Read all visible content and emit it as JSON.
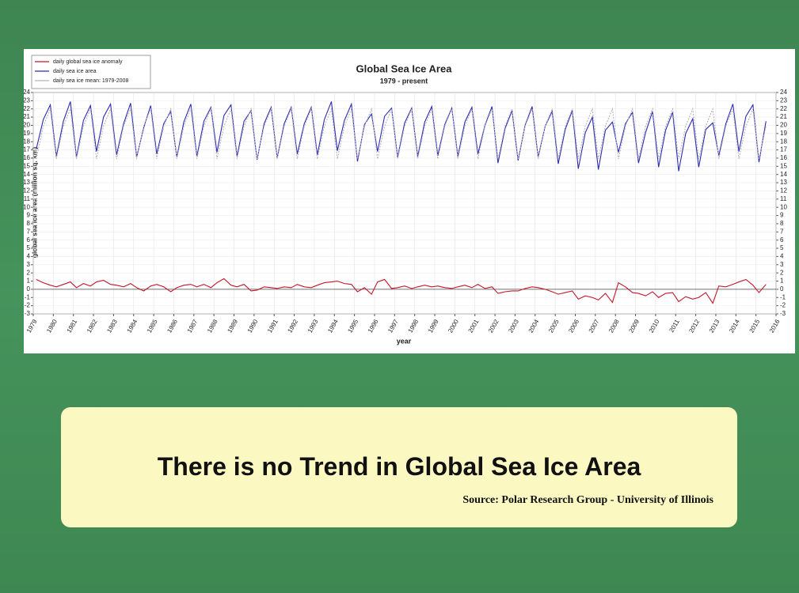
{
  "chart_data": {
    "type": "line",
    "title": "Global Sea Ice Area",
    "subtitle": "1979 - present",
    "xlabel": "year",
    "ylabel": "global sea ice area (million sq. km)",
    "xlim": [
      1979,
      2016
    ],
    "ylim": [
      -3,
      24
    ],
    "grid": true,
    "legend": "upper left",
    "xticks": [
      1979,
      1980,
      1981,
      1982,
      1983,
      1984,
      1985,
      1986,
      1987,
      1988,
      1989,
      1990,
      1991,
      1992,
      1993,
      1994,
      1995,
      1996,
      1997,
      1998,
      1999,
      2000,
      2001,
      2002,
      2003,
      2004,
      2005,
      2006,
      2007,
      2008,
      2009,
      2010,
      2011,
      2012,
      2013,
      2014,
      2015,
      2016
    ],
    "yticks": [
      -3,
      -2,
      -1,
      0,
      1,
      2,
      3,
      4,
      5,
      6,
      7,
      8,
      9,
      10,
      11,
      12,
      13,
      14,
      15,
      16,
      17,
      18,
      19,
      20,
      21,
      22,
      23,
      24
    ],
    "x": [
      1979.15,
      1979.5,
      1979.85,
      1980.15,
      1980.5,
      1980.85,
      1981.15,
      1981.5,
      1981.85,
      1982.15,
      1982.5,
      1982.85,
      1983.15,
      1983.5,
      1983.85,
      1984.15,
      1984.5,
      1984.85,
      1985.15,
      1985.5,
      1985.85,
      1986.15,
      1986.5,
      1986.85,
      1987.15,
      1987.5,
      1987.85,
      1988.15,
      1988.5,
      1988.85,
      1989.15,
      1989.5,
      1989.85,
      1990.15,
      1990.5,
      1990.85,
      1991.15,
      1991.5,
      1991.85,
      1992.15,
      1992.5,
      1992.85,
      1993.15,
      1993.5,
      1993.85,
      1994.15,
      1994.5,
      1994.85,
      1995.15,
      1995.5,
      1995.85,
      1996.15,
      1996.5,
      1996.85,
      1997.15,
      1997.5,
      1997.85,
      1998.15,
      1998.5,
      1998.85,
      1999.15,
      1999.5,
      1999.85,
      2000.15,
      2000.5,
      2000.85,
      2001.15,
      2001.5,
      2001.85,
      2002.15,
      2002.5,
      2002.85,
      2003.15,
      2003.5,
      2003.85,
      2004.15,
      2004.5,
      2004.85,
      2005.15,
      2005.5,
      2005.85,
      2006.15,
      2006.5,
      2006.85,
      2007.15,
      2007.5,
      2007.85,
      2008.15,
      2008.5,
      2008.85,
      2009.15,
      2009.5,
      2009.85,
      2010.15,
      2010.5,
      2010.85,
      2011.15,
      2011.5,
      2011.85,
      2012.15,
      2012.5,
      2012.85,
      2013.15,
      2013.5,
      2013.85,
      2014.15,
      2014.5,
      2014.85,
      2015.15,
      2015.5
    ],
    "series": [
      {
        "name": "daily global sea ice anomaly",
        "color": "#c4162a",
        "values": [
          1.2,
          0.8,
          0.5,
          0.3,
          0.6,
          0.9,
          0.2,
          0.7,
          0.4,
          0.9,
          1.1,
          0.6,
          0.5,
          0.3,
          0.7,
          0.2,
          -0.2,
          0.4,
          0.6,
          0.3,
          -0.3,
          0.2,
          0.5,
          0.6,
          0.3,
          0.6,
          0.2,
          0.8,
          1.3,
          0.5,
          0.3,
          0.6,
          -0.2,
          -0.1,
          0.3,
          0.2,
          0.1,
          0.3,
          0.2,
          0.6,
          0.3,
          0.2,
          0.5,
          0.8,
          0.9,
          1.0,
          0.7,
          0.6,
          -0.3,
          0.2,
          -0.6,
          0.9,
          1.2,
          0.1,
          0.2,
          0.4,
          0.1,
          0.3,
          0.5,
          0.3,
          0.4,
          0.2,
          0.1,
          0.3,
          0.5,
          0.2,
          0.6,
          0.1,
          0.3,
          -0.5,
          -0.3,
          -0.2,
          -0.2,
          0.1,
          0.3,
          0.2,
          0.0,
          -0.3,
          -0.6,
          -0.4,
          -0.2,
          -1.2,
          -0.8,
          -1.0,
          -1.3,
          -0.5,
          -1.6,
          0.8,
          0.3,
          -0.4,
          -0.5,
          -0.8,
          -0.3,
          -1.0,
          -0.5,
          -0.4,
          -1.5,
          -0.9,
          -1.2,
          -1.0,
          -0.4,
          -1.7,
          0.4,
          0.3,
          0.6,
          0.9,
          1.2,
          0.5,
          -0.4,
          0.6
        ]
      },
      {
        "name": "daily sea ice area",
        "color": "#2b2bb5",
        "values": [
          17.1,
          20.7,
          22.5,
          16.2,
          20.5,
          22.9,
          16.1,
          20.6,
          22.4,
          16.8,
          21.0,
          22.6,
          16.4,
          20.2,
          22.7,
          16.1,
          19.7,
          22.4,
          16.5,
          20.2,
          21.7,
          16.1,
          20.4,
          22.6,
          16.2,
          20.5,
          22.2,
          16.7,
          21.2,
          22.5,
          16.2,
          20.5,
          21.8,
          15.8,
          20.2,
          22.2,
          16.0,
          20.2,
          22.2,
          16.5,
          20.2,
          22.2,
          16.4,
          20.7,
          22.9,
          16.9,
          20.6,
          22.6,
          15.6,
          20.1,
          21.4,
          16.8,
          21.1,
          22.1,
          16.1,
          20.3,
          22.1,
          16.2,
          20.4,
          22.3,
          16.3,
          20.1,
          22.1,
          16.2,
          20.4,
          22.2,
          16.5,
          20.0,
          22.3,
          15.4,
          19.6,
          21.8,
          15.7,
          20.0,
          22.3,
          16.1,
          19.9,
          21.7,
          15.3,
          19.5,
          21.8,
          14.7,
          19.1,
          21.0,
          14.6,
          19.4,
          20.4,
          16.7,
          20.2,
          21.6,
          15.4,
          19.1,
          21.7,
          14.9,
          19.4,
          21.6,
          14.4,
          19.0,
          20.8,
          14.9,
          19.5,
          20.3,
          16.3,
          20.2,
          22.6,
          16.8,
          21.1,
          22.5,
          15.5,
          20.5
        ]
      },
      {
        "name": "daily sea ice mean: 1979-2008",
        "color": "#b5b5b5",
        "values": [
          15.9,
          19.9,
          22.0,
          15.9,
          19.9,
          22.0,
          15.9,
          19.9,
          22.0,
          15.9,
          19.9,
          22.0,
          15.9,
          19.9,
          22.0,
          15.9,
          19.9,
          22.0,
          15.9,
          19.9,
          22.0,
          15.9,
          19.9,
          22.0,
          15.9,
          19.9,
          22.0,
          15.9,
          19.9,
          22.0,
          15.9,
          19.9,
          22.0,
          15.9,
          19.9,
          22.0,
          15.9,
          19.9,
          22.0,
          15.9,
          19.9,
          22.0,
          15.9,
          19.9,
          22.0,
          15.9,
          19.9,
          22.0,
          15.9,
          19.9,
          22.0,
          15.9,
          19.9,
          22.0,
          15.9,
          19.9,
          22.0,
          15.9,
          19.9,
          22.0,
          15.9,
          19.9,
          22.0,
          15.9,
          19.9,
          22.0,
          15.9,
          19.9,
          22.0,
          15.9,
          19.9,
          22.0,
          15.9,
          19.9,
          22.0,
          15.9,
          19.9,
          22.0,
          15.9,
          19.9,
          22.0,
          15.9,
          19.9,
          22.0,
          15.9,
          19.9,
          22.0,
          15.9,
          19.9,
          22.0,
          15.9,
          19.9,
          22.0,
          15.9,
          19.9,
          22.0,
          15.9,
          19.9,
          22.0,
          15.9,
          19.9,
          22.0,
          15.9,
          19.9,
          22.0,
          15.9,
          19.9,
          22.0,
          15.9,
          19.9
        ]
      }
    ]
  },
  "caption": {
    "headline": "There is no Trend in Global Sea Ice Area",
    "source": "Source: Polar Research Group - University of Illinois"
  }
}
